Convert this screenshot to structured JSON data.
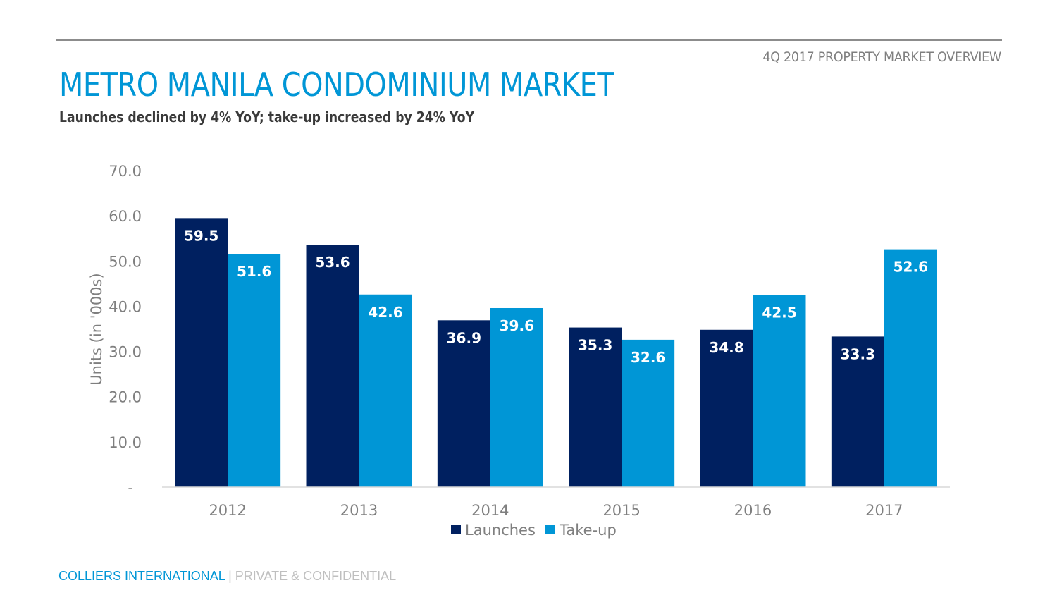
{
  "header": {
    "report_label": "4Q 2017 PROPERTY MARKET OVERVIEW",
    "title": "METRO MANILA CONDOMINIUM MARKET",
    "subtitle": "Launches declined by 4% YoY; take-up increased by 24% YoY"
  },
  "footer": {
    "brand": "COLLIERS INTERNATIONAL",
    "separator": "|",
    "confidentiality": "PRIVATE & CONFIDENTIAL"
  },
  "colors": {
    "launches": "#002060",
    "take_up": "#0096d6",
    "title": "#0096d6"
  },
  "chart_data": {
    "type": "bar",
    "title": "",
    "xlabel": "",
    "ylabel": "Units (in '000s)",
    "ylim": [
      0,
      70
    ],
    "yticks": [
      0,
      10,
      20,
      30,
      40,
      50,
      60,
      70
    ],
    "ytick_labels": [
      "-",
      "10.0",
      "20.0",
      "30.0",
      "40.0",
      "50.0",
      "60.0",
      "70.0"
    ],
    "grid": false,
    "legend_position": "bottom-center",
    "categories": [
      "2012",
      "2013",
      "2014",
      "2015",
      "2016",
      "2017"
    ],
    "series": [
      {
        "name": "Launches",
        "color": "#002060",
        "values": [
          59.5,
          53.6,
          36.9,
          35.3,
          34.8,
          33.3
        ],
        "labels": [
          "59.5",
          "53.6",
          "36.9",
          "35.3",
          "34.8",
          "33.3"
        ]
      },
      {
        "name": "Take-up",
        "color": "#0096d6",
        "values": [
          51.6,
          42.6,
          39.6,
          32.6,
          42.5,
          52.6
        ],
        "labels": [
          "51.6",
          "42.6",
          "39.6",
          "32.6",
          "42.5",
          "52.6"
        ]
      }
    ]
  }
}
